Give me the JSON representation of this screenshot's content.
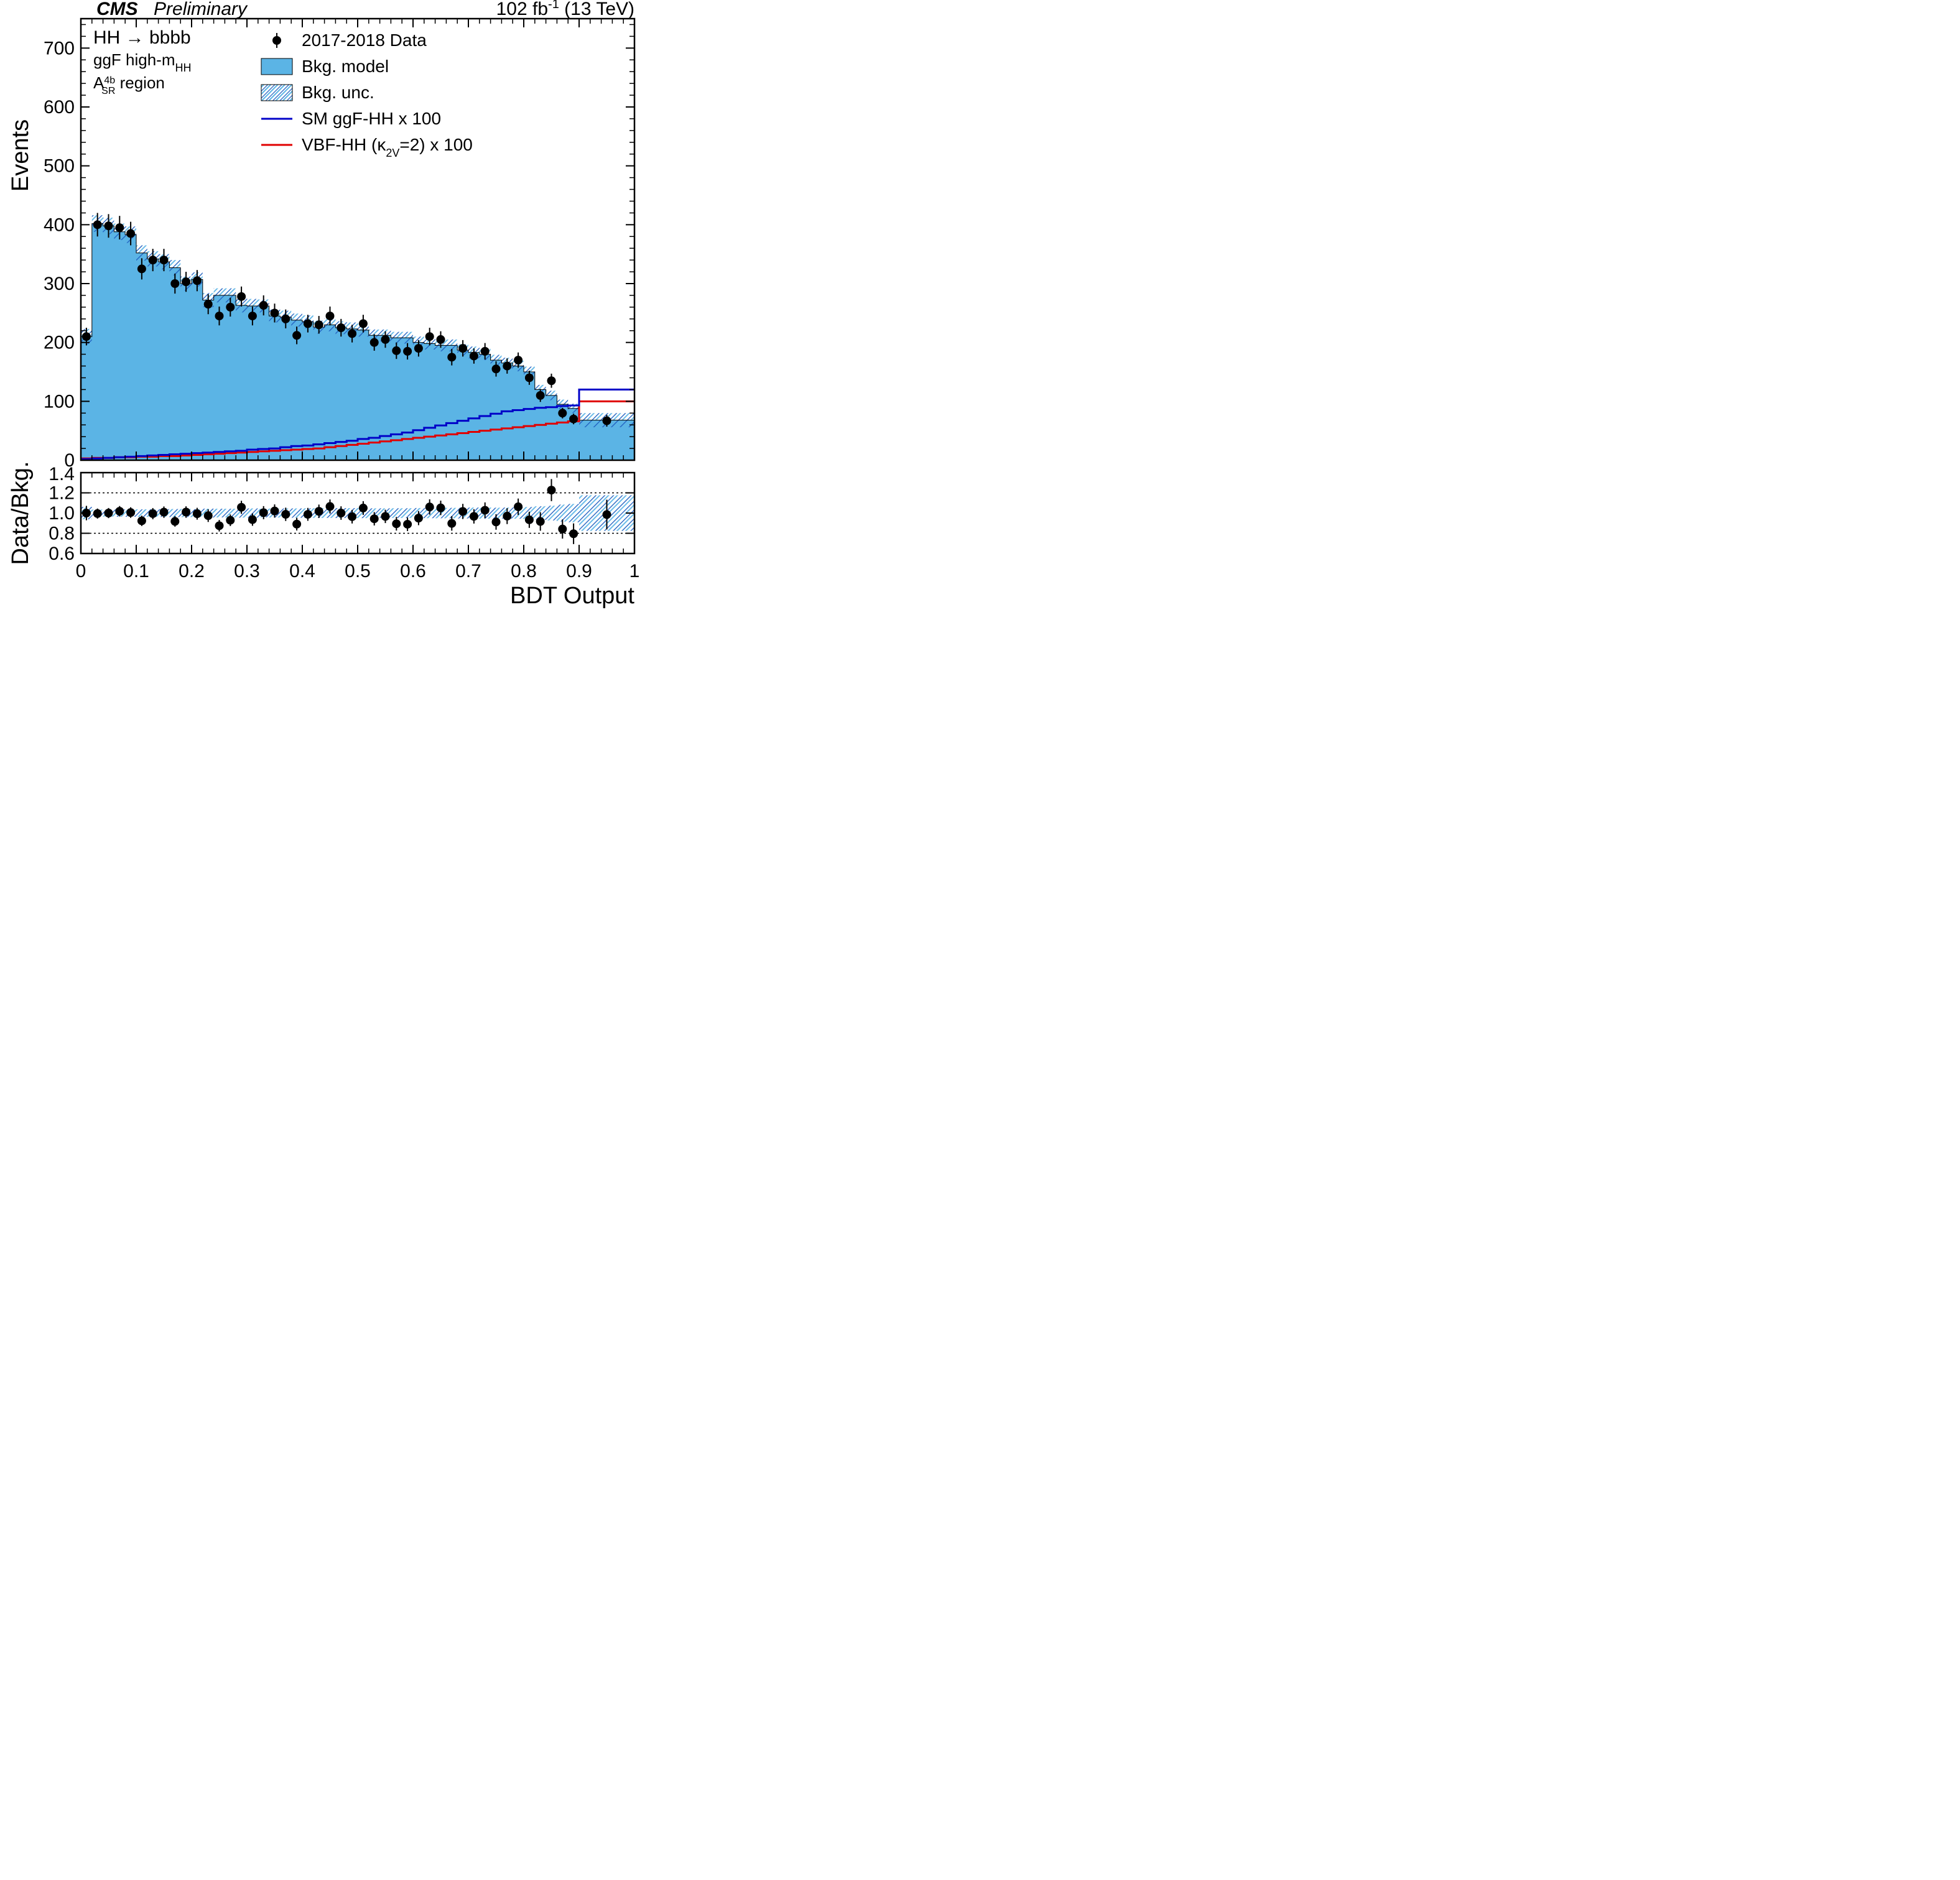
{
  "header": {
    "experiment": "CMS",
    "status": "Preliminary",
    "lumi": "102 fb",
    "lumi_sup": "-1",
    "energy": "(13 TeV)"
  },
  "region_labels": {
    "process": "HH → bbbb",
    "category": "ggF high-m",
    "category_sub": "HH",
    "region_prefix": "A",
    "region_sub": "SR",
    "region_sup": "4b",
    "region_suffix": " region"
  },
  "legend": {
    "data": "2017-2018 Data",
    "bkg": "Bkg. model",
    "bkg_unc": "Bkg. unc.",
    "ggf": "SM ggF-HH x 100",
    "vbf_prefix": "VBF-HH (κ",
    "vbf_sub": "2V",
    "vbf_suffix": "=2) x 100"
  },
  "axes": {
    "xlabel": "BDT Output",
    "ylabel_main": "Events",
    "ylabel_ratio": "Data/Bkg.",
    "xlim": [
      0,
      1
    ],
    "xtick_step": 0.1,
    "ylim_main": [
      0,
      750
    ],
    "ytick_main_step": 100,
    "ytick_main_labels": [
      0,
      100,
      200,
      300,
      400,
      500,
      600,
      700
    ],
    "ylim_ratio": [
      0.6,
      1.4
    ],
    "ytick_ratio_step": 0.2,
    "ytick_ratio_labels": [
      0.6,
      0.8,
      1.0,
      1.2,
      1.4
    ],
    "ratio_ref_lines": [
      0.8,
      1.2
    ]
  },
  "colors": {
    "bkg_fill": "#5bb4e5",
    "bkg_unc_hatch": "#2060c0",
    "ggf_line": "#0000c8",
    "vbf_line": "#e00000",
    "data_marker": "#000000",
    "axis": "#000000",
    "background": "#ffffff"
  },
  "style": {
    "axis_linewidth": 2.5,
    "tick_linewidth": 2,
    "major_tick_len": 14,
    "minor_tick_len": 8,
    "signal_linewidth": 3,
    "data_marker_radius": 7,
    "data_err_linewidth": 2,
    "label_fontsize": 38,
    "tick_fontsize": 30,
    "header_fontsize": 30,
    "legend_fontsize": 28,
    "region_fontsize": 26
  },
  "bins": {
    "edges": [
      0,
      0.02,
      0.04,
      0.06,
      0.08,
      0.1,
      0.12,
      0.14,
      0.16,
      0.18,
      0.2,
      0.22,
      0.24,
      0.26,
      0.28,
      0.3,
      0.32,
      0.34,
      0.36,
      0.38,
      0.4,
      0.42,
      0.44,
      0.46,
      0.48,
      0.5,
      0.52,
      0.54,
      0.56,
      0.58,
      0.6,
      0.62,
      0.64,
      0.66,
      0.68,
      0.7,
      0.72,
      0.74,
      0.76,
      0.78,
      0.8,
      0.82,
      0.84,
      0.86,
      0.88,
      0.9,
      1.0
    ],
    "bkg": [
      210,
      402,
      398,
      388,
      383,
      352,
      342,
      337,
      327,
      300,
      307,
      272,
      280,
      280,
      263,
      262,
      262,
      245,
      243,
      238,
      235,
      226,
      230,
      225,
      223,
      221,
      212,
      212,
      208,
      208,
      200,
      198,
      195,
      195,
      187,
      183,
      180,
      170,
      165,
      160,
      150,
      120,
      110,
      95,
      88,
      68
    ],
    "bkg_unc": [
      13,
      14,
      14,
      14,
      14,
      13,
      13,
      13,
      13,
      12,
      12,
      12,
      12,
      12,
      12,
      12,
      11,
      11,
      11,
      11,
      11,
      11,
      11,
      11,
      11,
      11,
      10,
      10,
      10,
      10,
      10,
      10,
      10,
      10,
      10,
      10,
      10,
      9,
      9,
      9,
      9,
      8,
      8,
      8,
      8,
      12
    ],
    "data": [
      210,
      400,
      398,
      395,
      385,
      325,
      340,
      340,
      300,
      303,
      305,
      265,
      245,
      260,
      278,
      245,
      263,
      250,
      240,
      212,
      232,
      230,
      245,
      225,
      215,
      232,
      200,
      205,
      186,
      185,
      190,
      210,
      205,
      175,
      190,
      177,
      185,
      155,
      160,
      170,
      140,
      110,
      135,
      80,
      70,
      67
    ],
    "data_err": [
      15,
      20,
      20,
      20,
      20,
      18,
      19,
      19,
      17,
      17,
      18,
      17,
      16,
      16,
      17,
      16,
      17,
      16,
      16,
      15,
      15,
      15,
      16,
      15,
      15,
      15,
      14,
      14,
      14,
      14,
      14,
      15,
      14,
      14,
      14,
      13,
      14,
      13,
      13,
      13,
      12,
      11,
      12,
      9,
      9,
      10
    ],
    "ggf": [
      2,
      3,
      4,
      5,
      6,
      7,
      8,
      9,
      10,
      11,
      12,
      13,
      14,
      15,
      16,
      18,
      19,
      20,
      22,
      24,
      25,
      27,
      29,
      31,
      33,
      36,
      38,
      41,
      44,
      47,
      51,
      55,
      59,
      63,
      67,
      71,
      75,
      79,
      83,
      85,
      87,
      89,
      90,
      92,
      93,
      120
    ],
    "vbf": [
      3,
      4,
      4,
      5,
      5,
      6,
      6,
      7,
      7,
      8,
      9,
      10,
      11,
      12,
      13,
      14,
      15,
      16,
      17,
      18,
      19,
      20,
      22,
      24,
      26,
      28,
      30,
      32,
      34,
      36,
      38,
      40,
      42,
      44,
      46,
      48,
      50,
      52,
      54,
      56,
      58,
      60,
      62,
      64,
      66,
      100
    ]
  }
}
